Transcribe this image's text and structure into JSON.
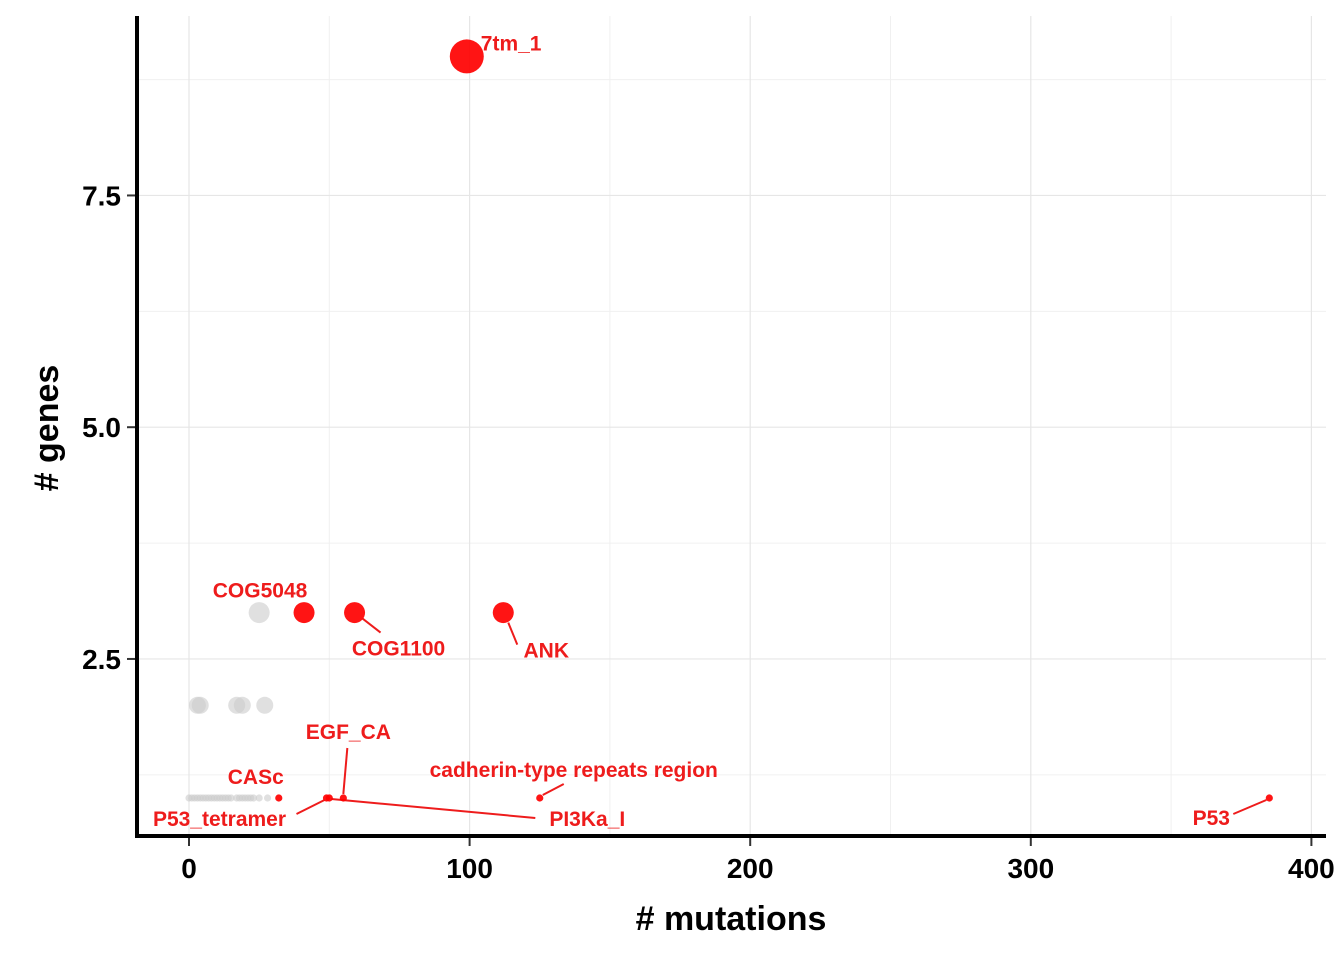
{
  "chart_data": {
    "type": "scatter",
    "xlabel": "# mutations",
    "ylabel": "# genes",
    "xlim": [
      -18,
      405
    ],
    "ylim": [
      0.62,
      9.45
    ],
    "x_ticks": [
      0,
      100,
      200,
      300,
      400
    ],
    "x_tick_labels": [
      "0",
      "100",
      "200",
      "300",
      "400"
    ],
    "y_ticks": [
      2.5,
      5.0,
      7.5
    ],
    "y_tick_labels": [
      "2.5",
      "5.0",
      "7.5"
    ],
    "grid": true,
    "legend": "none",
    "colors": {
      "highlight": "#ff0000",
      "background": "#cccccc",
      "label": "#ee1c1c"
    },
    "highlighted_points": [
      {
        "label": "7tm_1",
        "x": 99,
        "y": 9
      },
      {
        "label": "COG5048",
        "x": 41,
        "y": 3
      },
      {
        "label": "COG1100",
        "x": 59,
        "y": 3
      },
      {
        "label": "ANK",
        "x": 112,
        "y": 3
      },
      {
        "label": "EGF_CA",
        "x": 55,
        "y": 1
      },
      {
        "label": "CASc",
        "x": 32,
        "y": 1
      },
      {
        "label": "P53_tetramer",
        "x": 49,
        "y": 1
      },
      {
        "label": "cadherin-type repeats region",
        "x": 125,
        "y": 1
      },
      {
        "label": "PI3Ka_I",
        "x": 50,
        "y": 1
      },
      {
        "label": "P53",
        "x": 385,
        "y": 1
      }
    ],
    "background_points": [
      {
        "x": 25,
        "y": 3
      },
      {
        "x": 3,
        "y": 2
      },
      {
        "x": 4,
        "y": 2
      },
      {
        "x": 17,
        "y": 2
      },
      {
        "x": 19,
        "y": 2
      },
      {
        "x": 27,
        "y": 2
      },
      {
        "x": 0,
        "y": 1
      },
      {
        "x": 1,
        "y": 1
      },
      {
        "x": 2,
        "y": 1
      },
      {
        "x": 3,
        "y": 1
      },
      {
        "x": 4,
        "y": 1
      },
      {
        "x": 5,
        "y": 1
      },
      {
        "x": 6,
        "y": 1
      },
      {
        "x": 7,
        "y": 1
      },
      {
        "x": 8,
        "y": 1
      },
      {
        "x": 9,
        "y": 1
      },
      {
        "x": 10,
        "y": 1
      },
      {
        "x": 11,
        "y": 1
      },
      {
        "x": 12,
        "y": 1
      },
      {
        "x": 13,
        "y": 1
      },
      {
        "x": 14,
        "y": 1
      },
      {
        "x": 15,
        "y": 1
      },
      {
        "x": 17,
        "y": 1
      },
      {
        "x": 18,
        "y": 1
      },
      {
        "x": 19,
        "y": 1
      },
      {
        "x": 20,
        "y": 1
      },
      {
        "x": 21,
        "y": 1
      },
      {
        "x": 22,
        "y": 1
      },
      {
        "x": 23,
        "y": 1
      },
      {
        "x": 25,
        "y": 1
      },
      {
        "x": 28,
        "y": 1
      }
    ]
  }
}
